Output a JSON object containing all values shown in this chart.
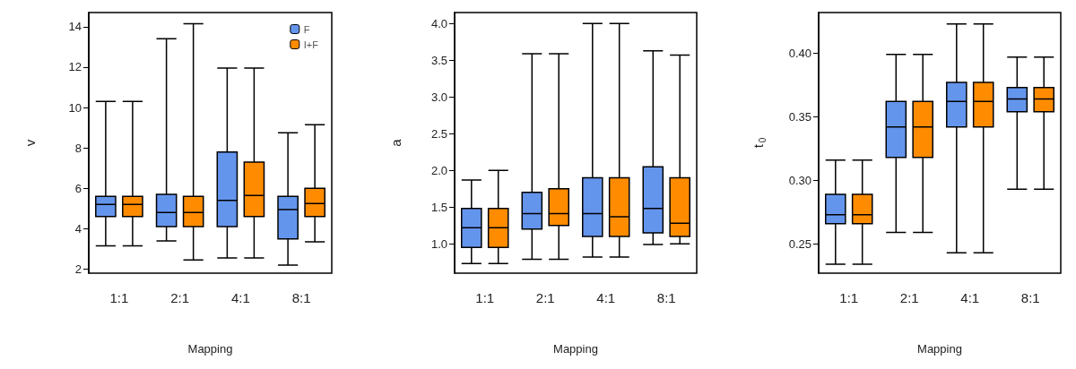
{
  "chart_data": [
    {
      "type": "box",
      "xlabel": "Mapping",
      "ylabel": "v",
      "categories": [
        "1:1",
        "2:1",
        "4:1",
        "8:1"
      ],
      "ylim": [
        1.8,
        14.7
      ],
      "yticks": [
        2,
        4,
        6,
        8,
        10,
        12,
        14
      ],
      "grid": false,
      "legend": "top right",
      "series": [
        {
          "name": "F",
          "color": "#6495ed",
          "boxes": [
            {
              "low": 3.15,
              "q1": 4.6,
              "median": 5.2,
              "q3": 5.6,
              "high": 10.3
            },
            {
              "low": 3.4,
              "q1": 4.1,
              "median": 4.8,
              "q3": 5.7,
              "high": 13.4
            },
            {
              "low": 2.55,
              "q1": 4.1,
              "median": 5.4,
              "q3": 7.8,
              "high": 11.95
            },
            {
              "low": 2.2,
              "q1": 3.5,
              "median": 4.95,
              "q3": 5.6,
              "high": 8.75
            }
          ]
        },
        {
          "name": "I+F",
          "color": "#ff8c00",
          "boxes": [
            {
              "low": 3.15,
              "q1": 4.6,
              "median": 5.2,
              "q3": 5.6,
              "high": 10.3
            },
            {
              "low": 2.45,
              "q1": 4.1,
              "median": 4.8,
              "q3": 5.6,
              "high": 14.15
            },
            {
              "low": 2.55,
              "q1": 4.6,
              "median": 5.65,
              "q3": 7.3,
              "high": 11.95
            },
            {
              "low": 3.35,
              "q1": 4.6,
              "median": 5.25,
              "q3": 6.0,
              "high": 9.15
            }
          ]
        }
      ]
    },
    {
      "type": "box",
      "xlabel": "Mapping",
      "ylabel": "a",
      "categories": [
        "1:1",
        "2:1",
        "4:1",
        "8:1"
      ],
      "ylim": [
        0.6,
        4.15
      ],
      "yticks": [
        {
          "value": 1,
          "label": "1.0"
        },
        1.5,
        {
          "value": 2,
          "label": "2.0"
        },
        2.5,
        {
          "value": 3,
          "label": "3.0"
        },
        3.5,
        {
          "value": 4,
          "label": "4.0"
        }
      ],
      "grid": false,
      "series": [
        {
          "color": "#6495ed",
          "boxes": [
            {
              "low": 0.73,
              "q1": 0.95,
              "median": 1.22,
              "q3": 1.48,
              "high": 1.87
            },
            {
              "low": 0.79,
              "q1": 1.2,
              "median": 1.41,
              "q3": 1.7,
              "high": 3.59
            },
            {
              "low": 0.82,
              "q1": 1.1,
              "median": 1.41,
              "q3": 1.9,
              "high": 4.0
            },
            {
              "low": 0.99,
              "q1": 1.15,
              "median": 1.48,
              "q3": 2.05,
              "high": 3.63
            }
          ]
        },
        {
          "color": "#ff8c00",
          "boxes": [
            {
              "low": 0.73,
              "q1": 0.95,
              "median": 1.22,
              "q3": 1.48,
              "high": 2.0
            },
            {
              "low": 0.79,
              "q1": 1.25,
              "median": 1.41,
              "q3": 1.75,
              "high": 3.59
            },
            {
              "low": 0.82,
              "q1": 1.1,
              "median": 1.37,
              "q3": 1.9,
              "high": 4.0
            },
            {
              "low": 1.0,
              "q1": 1.1,
              "median": 1.28,
              "q3": 1.9,
              "high": 3.57
            }
          ]
        }
      ]
    },
    {
      "type": "box",
      "xlabel": "Mapping",
      "ylabel": "t$_{0}$",
      "categories": [
        "1:1",
        "2:1",
        "4:1",
        "8:1"
      ],
      "ylim": [
        0.227,
        0.432
      ],
      "yticks": [
        0.25,
        {
          "value": 0.3,
          "label": "0.30"
        },
        0.35,
        {
          "value": 0.4,
          "label": "0.40"
        }
      ],
      "grid": false,
      "series": [
        {
          "color": "#6495ed",
          "boxes": [
            {
              "low": 0.234,
              "q1": 0.266,
              "median": 0.273,
              "q3": 0.289,
              "high": 0.316
            },
            {
              "low": 0.259,
              "q1": 0.318,
              "median": 0.342,
              "q3": 0.362,
              "high": 0.399
            },
            {
              "low": 0.243,
              "q1": 0.342,
              "median": 0.362,
              "q3": 0.377,
              "high": 0.423
            },
            {
              "low": 0.293,
              "q1": 0.354,
              "median": 0.364,
              "q3": 0.373,
              "high": 0.397
            }
          ]
        },
        {
          "color": "#ff8c00",
          "boxes": [
            {
              "low": 0.234,
              "q1": 0.266,
              "median": 0.273,
              "q3": 0.289,
              "high": 0.316
            },
            {
              "low": 0.259,
              "q1": 0.318,
              "median": 0.342,
              "q3": 0.362,
              "high": 0.399
            },
            {
              "low": 0.243,
              "q1": 0.342,
              "median": 0.362,
              "q3": 0.377,
              "high": 0.423
            },
            {
              "low": 0.293,
              "q1": 0.354,
              "median": 0.364,
              "q3": 0.373,
              "high": 0.397
            }
          ]
        }
      ]
    }
  ]
}
